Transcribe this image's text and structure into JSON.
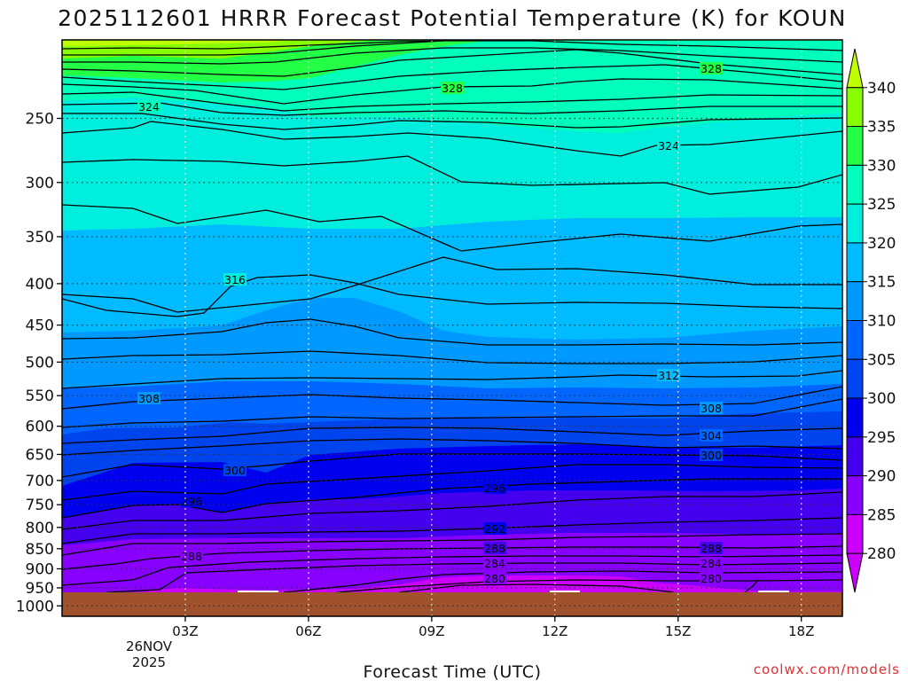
{
  "chart_data": {
    "type": "contour",
    "title": "2025112601 HRRR Forecast Potential Temperature (K) for KOUN",
    "xlabel": "Forecast Time (UTC)",
    "ylabel": "",
    "credit": "coolwx.com/models",
    "x_ticks": [
      "03Z",
      "06Z",
      "09Z",
      "12Z",
      "15Z",
      "18Z"
    ],
    "x_date_line1": "26NOV",
    "x_date_line2": "2025",
    "x_range_hours": [
      0,
      19
    ],
    "x_tick_hours": [
      3,
      6,
      9,
      12,
      15,
      18
    ],
    "y_ticks": [
      "250",
      "300",
      "350",
      "400",
      "450",
      "500",
      "550",
      "600",
      "650",
      "700",
      "750",
      "800",
      "850",
      "900",
      "950",
      "1000"
    ],
    "y_tick_values": [
      250,
      300,
      350,
      400,
      450,
      500,
      550,
      600,
      650,
      700,
      750,
      800,
      850,
      900,
      950,
      1000
    ],
    "y_range_hPa": [
      200,
      1030
    ],
    "y_scale": "log-pressure",
    "colorbar_levels": [
      "340",
      "335",
      "330",
      "325",
      "320",
      "315",
      "310",
      "305",
      "300",
      "295",
      "290",
      "285",
      "280"
    ],
    "colorbar_values": [
      340,
      335,
      330,
      325,
      320,
      315,
      310,
      305,
      300,
      295,
      290,
      285,
      280
    ],
    "colors": {
      "340": "#bfff00",
      "335": "#88ff00",
      "330": "#22ff44",
      "325": "#00ffbb",
      "320": "#00eedd",
      "315": "#00bbff",
      "310": "#0099ff",
      "305": "#0066ff",
      "300": "#0044ee",
      "295": "#0000ee",
      "290": "#4400ee",
      "285": "#8800ff",
      "280": "#cc00ff",
      "ground": "#a0522d"
    },
    "contour_labels": [
      {
        "text": "328",
        "hour": 15.3,
        "p": 218
      },
      {
        "text": "328",
        "hour": 10.0,
        "p": 232
      },
      {
        "text": "324",
        "hour": 2.0,
        "p": 246
      },
      {
        "text": "324",
        "hour": 14.8,
        "p": 282
      },
      {
        "text": "316",
        "hour": 4.9,
        "p": 414
      },
      {
        "text": "312",
        "hour": 14.8,
        "p": 553
      },
      {
        "text": "308",
        "hour": 2.0,
        "p": 588
      },
      {
        "text": "308",
        "hour": 16.0,
        "p": 610
      },
      {
        "text": "304",
        "hour": 16.0,
        "p": 641
      },
      {
        "text": "300",
        "hour": 16.0,
        "p": 675
      },
      {
        "text": "300",
        "hour": 4.9,
        "p": 700
      },
      {
        "text": "296",
        "hour": 2.9,
        "p": 758
      },
      {
        "text": "296",
        "hour": 10.9,
        "p": 735
      },
      {
        "text": "292",
        "hour": 10.9,
        "p": 819
      },
      {
        "text": "288",
        "hour": 10.9,
        "p": 871
      },
      {
        "text": "288",
        "hour": 16.0,
        "p": 874
      },
      {
        "text": "288",
        "hour": 2.9,
        "p": 891
      },
      {
        "text": "284",
        "hour": 10.9,
        "p": 903
      },
      {
        "text": "284",
        "hour": 16.0,
        "p": 909
      },
      {
        "text": "280",
        "hour": 10.9,
        "p": 956
      },
      {
        "text": "280",
        "hour": 16.0,
        "p": 956
      }
    ]
  }
}
